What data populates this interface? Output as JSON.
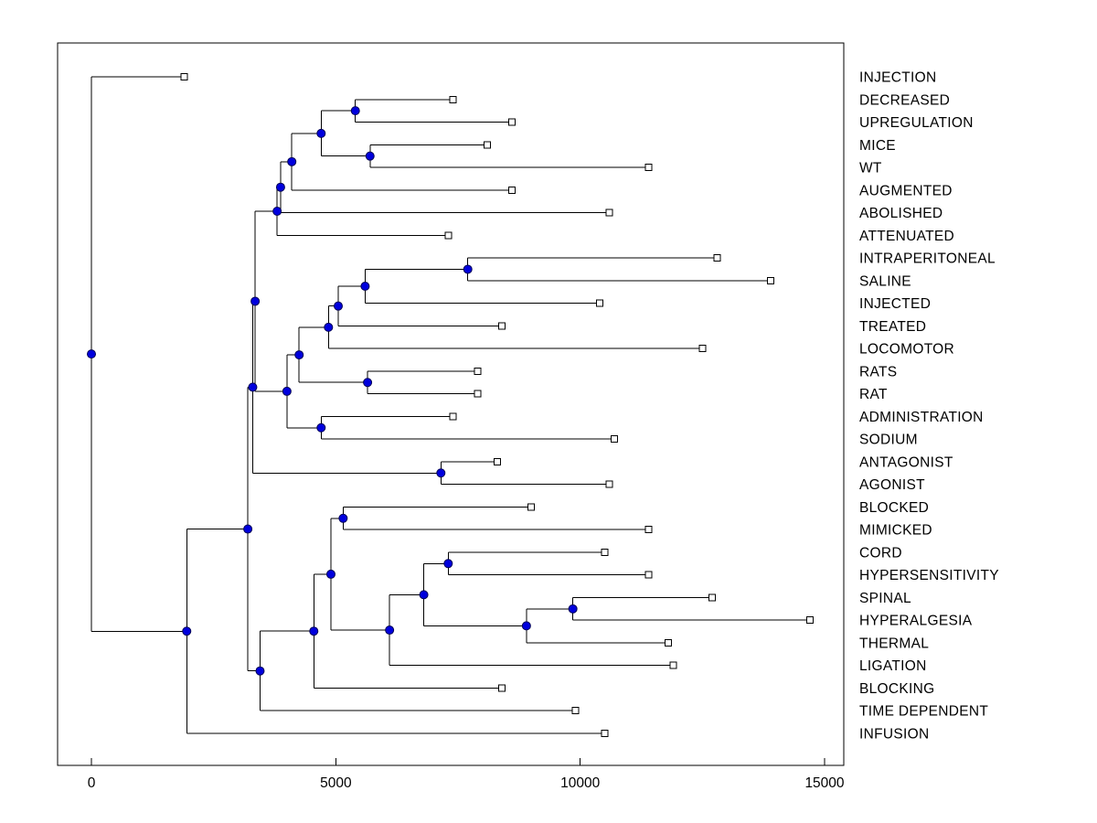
{
  "chart_data": {
    "type": "dendrogram",
    "orientation": "left-to-right",
    "title": "",
    "xlabel": "",
    "ylabel": "",
    "x_axis": {
      "ticks": [
        0,
        5000,
        10000,
        15000
      ],
      "tick_labels": [
        "0",
        "5000",
        "10000",
        "15000"
      ],
      "labeled_range": [
        0,
        15000
      ]
    },
    "legend": "none",
    "grid": false,
    "markers": {
      "internal_node": "filled-circle",
      "leaf_node": "open-square"
    },
    "colors": {
      "branch": "#000000",
      "internal_fill": "#0000dd",
      "internal_edge": "#000055",
      "leaf_fill": "#ffffff",
      "leaf_edge": "#000000",
      "axes_box": "#000000",
      "text": "#000000",
      "background": "#ffffff"
    },
    "leaf_order": [
      "INJECTION",
      "DECREASED",
      "UPREGULATION",
      "MICE",
      "WT",
      "AUGMENTED",
      "ABOLISHED",
      "ATTENUATED",
      "INTRAPERITONEAL",
      "SALINE",
      "INJECTED",
      "TREATED",
      "LOCOMOTOR",
      "RATS",
      "RAT",
      "ADMINISTRATION",
      "SODIUM",
      "ANTAGONIST",
      "AGONIST",
      "BLOCKED",
      "MIMICKED",
      "CORD",
      "HYPERSENSITIVITY",
      "SPINAL",
      "HYPERALGESIA",
      "THERMAL",
      "LIGATION",
      "BLOCKING",
      "TIME DEPENDENT",
      "INFUSION"
    ],
    "leaves": [
      {
        "label": "INJECTION",
        "distance": 1900
      },
      {
        "label": "DECREASED",
        "distance": 7400
      },
      {
        "label": "UPREGULATION",
        "distance": 8600
      },
      {
        "label": "MICE",
        "distance": 8100
      },
      {
        "label": "WT",
        "distance": 11400
      },
      {
        "label": "AUGMENTED",
        "distance": 8600
      },
      {
        "label": "ABOLISHED",
        "distance": 10600
      },
      {
        "label": "ATTENUATED",
        "distance": 7300
      },
      {
        "label": "INTRAPERITONEAL",
        "distance": 12800
      },
      {
        "label": "SALINE",
        "distance": 13900
      },
      {
        "label": "INJECTED",
        "distance": 10400
      },
      {
        "label": "TREATED",
        "distance": 8400
      },
      {
        "label": "LOCOMOTOR",
        "distance": 12500
      },
      {
        "label": "RATS",
        "distance": 7900
      },
      {
        "label": "RAT",
        "distance": 7900
      },
      {
        "label": "ADMINISTRATION",
        "distance": 7400
      },
      {
        "label": "SODIUM",
        "distance": 10700
      },
      {
        "label": "ANTAGONIST",
        "distance": 8300
      },
      {
        "label": "AGONIST",
        "distance": 10600
      },
      {
        "label": "BLOCKED",
        "distance": 9000
      },
      {
        "label": "MIMICKED",
        "distance": 11400
      },
      {
        "label": "CORD",
        "distance": 10500
      },
      {
        "label": "HYPERSENSITIVITY",
        "distance": 11400
      },
      {
        "label": "SPINAL",
        "distance": 12700
      },
      {
        "label": "HYPERALGESIA",
        "distance": 14700
      },
      {
        "label": "THERMAL",
        "distance": 11800
      },
      {
        "label": "LIGATION",
        "distance": 11900
      },
      {
        "label": "BLOCKING",
        "distance": 8400
      },
      {
        "label": "TIME DEPENDENT",
        "distance": 9900
      },
      {
        "label": "INFUSION",
        "distance": 10500
      }
    ],
    "tree": {
      "d": 0,
      "children": [
        {
          "leaf": "INJECTION",
          "d": 1900
        },
        {
          "d": 1950,
          "children": [
            {
              "d": 3200,
              "children": [
                {
                  "d": 3300,
                  "children": [
                    {
                      "d": 3350,
                      "children": [
                        {
                          "d": 3800,
                          "children": [
                            {
                              "d": 3870,
                              "children": [
                                {
                                  "d": 4100,
                                  "children": [
                                    {
                                      "d": 4700,
                                      "children": [
                                        {
                                          "d": 5400,
                                          "children": [
                                            {
                                              "leaf": "DECREASED",
                                              "d": 7400
                                            },
                                            {
                                              "leaf": "UPREGULATION",
                                              "d": 8600
                                            }
                                          ]
                                        },
                                        {
                                          "d": 5700,
                                          "children": [
                                            {
                                              "leaf": "MICE",
                                              "d": 8100
                                            },
                                            {
                                              "leaf": "WT",
                                              "d": 11400
                                            }
                                          ]
                                        }
                                      ]
                                    },
                                    {
                                      "leaf": "AUGMENTED",
                                      "d": 8600
                                    }
                                  ]
                                },
                                {
                                  "leaf": "ABOLISHED",
                                  "d": 10600
                                }
                              ]
                            },
                            {
                              "leaf": "ATTENUATED",
                              "d": 7300
                            }
                          ]
                        },
                        {
                          "d": 4000,
                          "children": [
                            {
                              "d": 4250,
                              "children": [
                                {
                                  "d": 4850,
                                  "children": [
                                    {
                                      "d": 5050,
                                      "children": [
                                        {
                                          "d": 5600,
                                          "children": [
                                            {
                                              "d": 7700,
                                              "children": [
                                                {
                                                  "leaf": "INTRAPERITONEAL",
                                                  "d": 12800
                                                },
                                                {
                                                  "leaf": "SALINE",
                                                  "d": 13900
                                                }
                                              ]
                                            },
                                            {
                                              "leaf": "INJECTED",
                                              "d": 10400
                                            }
                                          ]
                                        },
                                        {
                                          "leaf": "TREATED",
                                          "d": 8400
                                        }
                                      ]
                                    },
                                    {
                                      "leaf": "LOCOMOTOR",
                                      "d": 12500
                                    }
                                  ]
                                },
                                {
                                  "d": 5650,
                                  "children": [
                                    {
                                      "leaf": "RATS",
                                      "d": 7900
                                    },
                                    {
                                      "leaf": "RAT",
                                      "d": 7900
                                    }
                                  ]
                                }
                              ]
                            },
                            {
                              "d": 4700,
                              "children": [
                                {
                                  "leaf": "ADMINISTRATION",
                                  "d": 7400
                                },
                                {
                                  "leaf": "SODIUM",
                                  "d": 10700
                                }
                              ]
                            }
                          ]
                        }
                      ]
                    },
                    {
                      "d": 7150,
                      "children": [
                        {
                          "leaf": "ANTAGONIST",
                          "d": 8300
                        },
                        {
                          "leaf": "AGONIST",
                          "d": 10600
                        }
                      ]
                    }
                  ]
                },
                {
                  "d": 3450,
                  "children": [
                    {
                      "d": 4550,
                      "children": [
                        {
                          "d": 4900,
                          "children": [
                            {
                              "d": 5150,
                              "children": [
                                {
                                  "leaf": "BLOCKED",
                                  "d": 9000
                                },
                                {
                                  "leaf": "MIMICKED",
                                  "d": 11400
                                }
                              ]
                            },
                            {
                              "d": 6100,
                              "children": [
                                {
                                  "d": 6800,
                                  "children": [
                                    {
                                      "d": 7300,
                                      "children": [
                                        {
                                          "leaf": "CORD",
                                          "d": 10500
                                        },
                                        {
                                          "leaf": "HYPERSENSITIVITY",
                                          "d": 11400
                                        }
                                      ]
                                    },
                                    {
                                      "d": 8900,
                                      "children": [
                                        {
                                          "d": 9850,
                                          "children": [
                                            {
                                              "leaf": "SPINAL",
                                              "d": 12700
                                            },
                                            {
                                              "leaf": "HYPERALGESIA",
                                              "d": 14700
                                            }
                                          ]
                                        },
                                        {
                                          "leaf": "THERMAL",
                                          "d": 11800
                                        }
                                      ]
                                    }
                                  ]
                                },
                                {
                                  "leaf": "LIGATION",
                                  "d": 11900
                                }
                              ]
                            }
                          ]
                        },
                        {
                          "leaf": "BLOCKING",
                          "d": 8400
                        }
                      ]
                    },
                    {
                      "leaf": "TIME DEPENDENT",
                      "d": 9900
                    }
                  ]
                }
              ]
            },
            {
              "leaf": "INFUSION",
              "d": 10500
            }
          ]
        }
      ]
    }
  }
}
